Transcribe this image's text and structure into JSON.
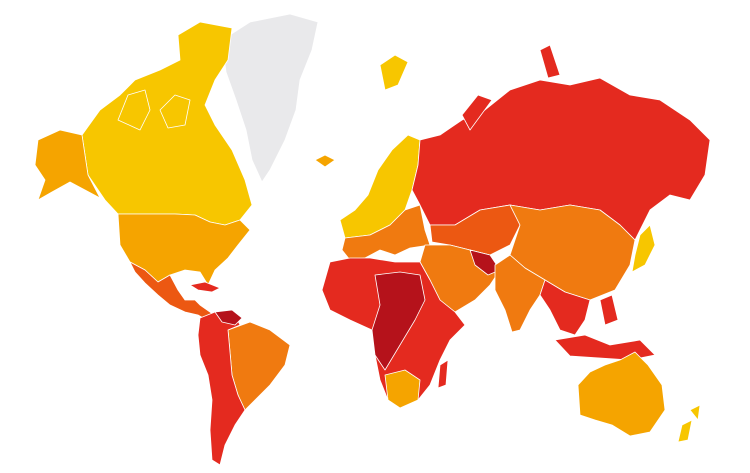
{
  "map": {
    "palette": [
      "#f7c600",
      "#f5a400",
      "#f07a10",
      "#ec5812",
      "#e42a1f",
      "#b5121b",
      "#e9e9eb"
    ]
  }
}
